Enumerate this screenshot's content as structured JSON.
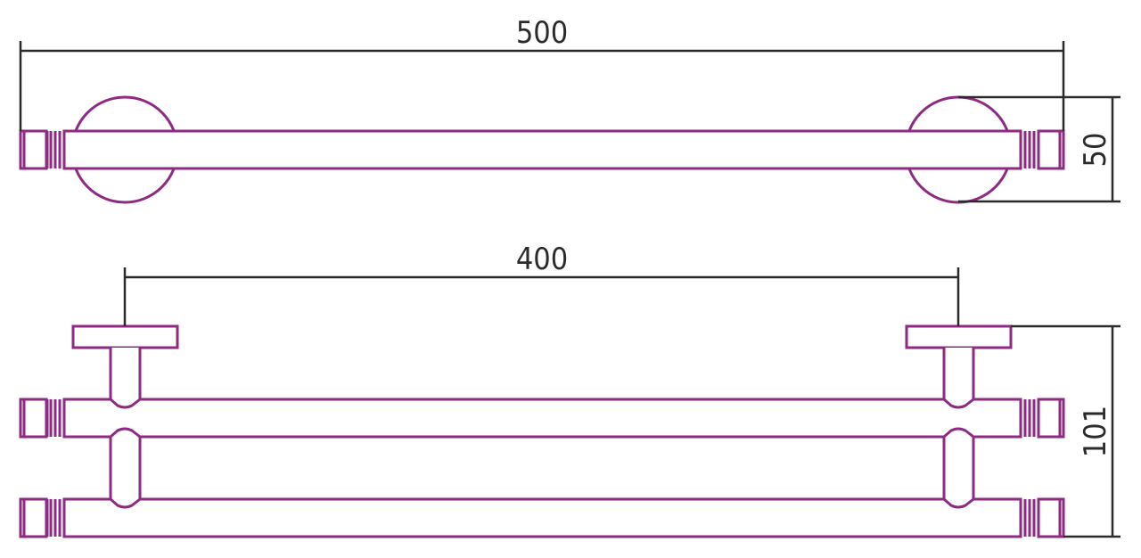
{
  "colors": {
    "outline": "#8e2a82",
    "dimension": "#2b2b2b"
  },
  "views": {
    "top": {
      "length_label": "500",
      "depth_label": "50"
    },
    "front": {
      "mount_spacing_label": "400",
      "height_label": "101"
    }
  }
}
